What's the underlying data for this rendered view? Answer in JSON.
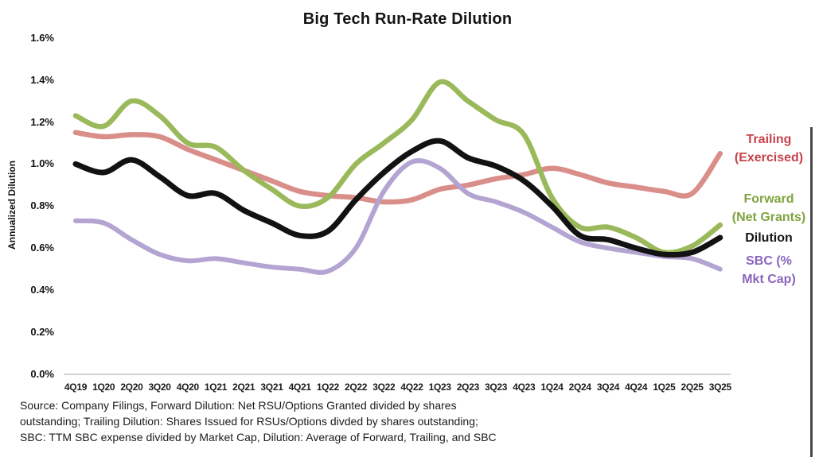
{
  "title": "Big Tech Run-Rate Dilution",
  "y_axis": {
    "label": "Annualized Dilution",
    "ticks": [
      "1.6%",
      "1.4%",
      "1.2%",
      "1.0%",
      "0.8%",
      "0.6%",
      "0.4%",
      "0.2%",
      "0.0%"
    ]
  },
  "legend": [
    {
      "id": "trailing",
      "lines": [
        "Trailing",
        "(Exercised)"
      ],
      "color": "#c7434c"
    },
    {
      "id": "forward",
      "lines": [
        "Forward",
        "(Net Grants)"
      ],
      "color": "#7fa43f"
    },
    {
      "id": "dilution",
      "lines": [
        "Dilution"
      ],
      "color": "#161616"
    },
    {
      "id": "sbc",
      "lines": [
        "SBC (%",
        "Mkt Cap)"
      ],
      "color": "#8a65bd"
    }
  ],
  "footnote_lines": [
    "Source: Company Filings, Forward Dilution: Net RSU/Options Granted divided by shares",
    "outstanding; Trailing Dilution: Shares Issued for RSUs/Options divded by shares outstanding;",
    "SBC: TTM SBC expense divided by Market Cap, Dilution: Average of Forward, Trailing, and SBC"
  ],
  "chart_data": {
    "type": "line",
    "title": "Big Tech Run-Rate Dilution",
    "xlabel": "",
    "ylabel": "Annualized Dilution",
    "ylim": [
      0.0,
      1.6
    ],
    "y_tick_step": 0.2,
    "y_unit": "%",
    "grid": false,
    "legend_position": "right",
    "categories": [
      "4Q19",
      "1Q20",
      "2Q20",
      "3Q20",
      "4Q20",
      "1Q21",
      "2Q21",
      "3Q21",
      "4Q21",
      "1Q22",
      "2Q22",
      "3Q22",
      "4Q22",
      "1Q23",
      "2Q23",
      "3Q23",
      "4Q23",
      "1Q24",
      "2Q24",
      "3Q24",
      "4Q24",
      "1Q25",
      "2Q25",
      "3Q25"
    ],
    "series": [
      {
        "id": "trailing",
        "name": "Trailing (Exercised)",
        "color": "#d98e89",
        "values": [
          1.15,
          1.13,
          1.14,
          1.13,
          1.07,
          1.02,
          0.97,
          0.92,
          0.87,
          0.85,
          0.84,
          0.82,
          0.83,
          0.88,
          0.9,
          0.93,
          0.95,
          0.98,
          0.95,
          0.91,
          0.89,
          0.87,
          0.86,
          1.05
        ]
      },
      {
        "id": "sbc",
        "name": "SBC (% Mkt Cap)",
        "color": "#b3a4d2",
        "values": [
          0.73,
          0.72,
          0.64,
          0.57,
          0.54,
          0.55,
          0.53,
          0.51,
          0.5,
          0.49,
          0.6,
          0.87,
          1.01,
          0.98,
          0.86,
          0.82,
          0.77,
          0.7,
          0.63,
          0.6,
          0.58,
          0.56,
          0.55,
          0.5
        ]
      },
      {
        "id": "forward",
        "name": "Forward (Net Grants)",
        "color": "#9ab95a",
        "values": [
          1.23,
          1.18,
          1.3,
          1.23,
          1.1,
          1.08,
          0.97,
          0.88,
          0.8,
          0.84,
          1.0,
          1.1,
          1.21,
          1.39,
          1.3,
          1.21,
          1.14,
          0.84,
          0.7,
          0.7,
          0.65,
          0.58,
          0.61,
          0.71
        ]
      },
      {
        "id": "dilution",
        "name": "Dilution",
        "color": "#121212",
        "values": [
          1.0,
          0.96,
          1.02,
          0.94,
          0.85,
          0.86,
          0.78,
          0.72,
          0.66,
          0.68,
          0.83,
          0.96,
          1.06,
          1.11,
          1.03,
          0.99,
          0.92,
          0.8,
          0.66,
          0.64,
          0.6,
          0.57,
          0.58,
          0.65
        ]
      }
    ]
  }
}
